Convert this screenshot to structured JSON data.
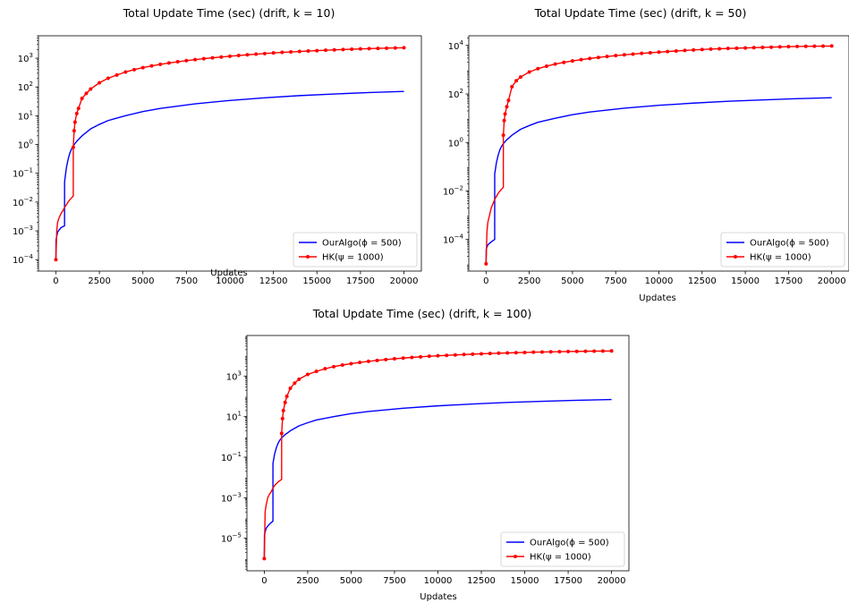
{
  "chart_data": [
    {
      "type": "line",
      "title": "Total Update Time (sec) (drift, k = 10)",
      "xlabel": "Updates",
      "ylabel": "",
      "yscale": "log",
      "xlim": [
        -1000,
        21000
      ],
      "ylim": [
        4e-05,
        6000
      ],
      "xticks": [
        0,
        2500,
        5000,
        7500,
        10000,
        12500,
        15000,
        17500,
        20000
      ],
      "yticks": [
        {
          "value": 0.0001,
          "mant": "10",
          "exp": "−4"
        },
        {
          "value": 0.001,
          "mant": "10",
          "exp": "−3"
        },
        {
          "value": 0.01,
          "mant": "10",
          "exp": "−2"
        },
        {
          "value": 0.1,
          "mant": "10",
          "exp": "−1"
        },
        {
          "value": 1,
          "mant": "10",
          "exp": "0"
        },
        {
          "value": 10,
          "mant": "10",
          "exp": "1"
        },
        {
          "value": 100,
          "mant": "10",
          "exp": "2"
        },
        {
          "value": 1000,
          "mant": "10",
          "exp": "3"
        }
      ],
      "legend": "lower-right",
      "series": [
        {
          "name": "OurAlgo(ϕ = 500)",
          "color": "#0000ff",
          "marker": "none",
          "x": [
            0,
            10,
            100,
            200,
            300,
            400,
            499,
            500,
            600,
            700,
            800,
            900,
            1000,
            1200,
            1500,
            2000,
            2500,
            3000,
            4000,
            5000,
            6000,
            8000,
            10000,
            12000,
            14000,
            16000,
            18000,
            20000
          ],
          "y": [
            0.0001,
            0.0005,
            0.0009,
            0.0011,
            0.0013,
            0.0014,
            0.0015,
            0.05,
            0.15,
            0.3,
            0.5,
            0.7,
            0.9,
            1.3,
            2.0,
            3.5,
            5.0,
            6.8,
            10,
            14,
            18,
            26,
            34,
            42,
            50,
            57,
            64,
            70
          ]
        },
        {
          "name": "HK(ψ = 1000)",
          "color": "#ff0000",
          "marker": "dot",
          "x": [
            0,
            50,
            100,
            200,
            300,
            400,
            500,
            600,
            700,
            800,
            900,
            999,
            1000,
            1050,
            1100,
            1200,
            1300,
            1500,
            1750,
            2000,
            2500,
            3000,
            3500,
            4000,
            4500,
            5000,
            5500,
            6000,
            6500,
            7000,
            7500,
            8000,
            8500,
            9000,
            9500,
            10000,
            10500,
            11000,
            11500,
            12000,
            12500,
            13000,
            13500,
            14000,
            14500,
            15000,
            15500,
            16000,
            16500,
            17000,
            17500,
            18000,
            18500,
            19000,
            19500,
            20000
          ],
          "y": [
            0.0001,
            0.001,
            0.002,
            0.003,
            0.004,
            0.005,
            0.0065,
            0.008,
            0.01,
            0.012,
            0.014,
            0.016,
            0.8,
            3,
            6,
            12,
            18,
            40,
            60,
            85,
            140,
            200,
            260,
            330,
            400,
            470,
            540,
            610,
            680,
            750,
            820,
            890,
            960,
            1030,
            1100,
            1170,
            1240,
            1310,
            1380,
            1450,
            1520,
            1590,
            1650,
            1710,
            1770,
            1830,
            1890,
            1950,
            2000,
            2050,
            2100,
            2150,
            2190,
            2230,
            2270,
            2300
          ]
        }
      ]
    },
    {
      "type": "line",
      "title": "Total Update Time (sec) (drift, k = 50)",
      "xlabel": "Updates",
      "ylabel": "",
      "yscale": "log",
      "xlim": [
        -1000,
        21000
      ],
      "ylim": [
        5e-06,
        25000
      ],
      "xticks": [
        0,
        2500,
        5000,
        7500,
        10000,
        12500,
        15000,
        17500,
        20000
      ],
      "yticks": [
        {
          "value": 0.0001,
          "mant": "10",
          "exp": "−4"
        },
        {
          "value": 0.01,
          "mant": "10",
          "exp": "−2"
        },
        {
          "value": 1,
          "mant": "10",
          "exp": "0"
        },
        {
          "value": 100,
          "mant": "10",
          "exp": "2"
        },
        {
          "value": 10000,
          "mant": "10",
          "exp": "4"
        }
      ],
      "legend": "lower-right",
      "series": [
        {
          "name": "OurAlgo(ϕ = 500)",
          "color": "#0000ff",
          "marker": "none",
          "x": [
            0,
            10,
            100,
            200,
            300,
            400,
            499,
            500,
            600,
            700,
            800,
            900,
            1000,
            1200,
            1500,
            2000,
            2500,
            3000,
            4000,
            5000,
            6000,
            8000,
            10000,
            12000,
            14000,
            16000,
            18000,
            20000
          ],
          "y": [
            1e-05,
            4e-05,
            6e-05,
            7e-05,
            8e-05,
            9e-05,
            0.0001,
            0.05,
            0.15,
            0.3,
            0.5,
            0.7,
            0.9,
            1.3,
            2.0,
            3.5,
            5.0,
            6.8,
            10,
            14,
            18,
            26,
            34,
            42,
            50,
            57,
            64,
            70
          ]
        },
        {
          "name": "HK(ψ = 1000)",
          "color": "#ff0000",
          "marker": "dot",
          "x": [
            0,
            50,
            100,
            200,
            300,
            400,
            500,
            600,
            700,
            800,
            900,
            999,
            1000,
            1050,
            1100,
            1200,
            1300,
            1500,
            1750,
            2000,
            2500,
            3000,
            3500,
            4000,
            4500,
            5000,
            5500,
            6000,
            6500,
            7000,
            7500,
            8000,
            8500,
            9000,
            9500,
            10000,
            10500,
            11000,
            11500,
            12000,
            12500,
            13000,
            13500,
            14000,
            14500,
            15000,
            15500,
            16000,
            16500,
            17000,
            17500,
            18000,
            18500,
            19000,
            19500,
            20000
          ],
          "y": [
            1e-05,
            0.0002,
            0.0005,
            0.001,
            0.002,
            0.003,
            0.0045,
            0.006,
            0.008,
            0.01,
            0.012,
            0.014,
            2,
            8,
            15,
            30,
            55,
            200,
            350,
            500,
            800,
            1100,
            1400,
            1700,
            2000,
            2300,
            2600,
            2900,
            3200,
            3500,
            3800,
            4100,
            4400,
            4700,
            5000,
            5300,
            5600,
            5900,
            6200,
            6500,
            6800,
            7100,
            7300,
            7500,
            7700,
            7900,
            8100,
            8300,
            8500,
            8700,
            8900,
            9100,
            9200,
            9300,
            9400,
            9500
          ]
        }
      ]
    },
    {
      "type": "line",
      "title": "Total Update Time (sec) (drift, k = 100)",
      "xlabel": "Updates",
      "ylabel": "",
      "yscale": "log",
      "xlim": [
        -1000,
        21000
      ],
      "ylim": [
        2.5e-07,
        100000
      ],
      "xticks": [
        0,
        2500,
        5000,
        7500,
        10000,
        12500,
        15000,
        17500,
        20000
      ],
      "yticks": [
        {
          "value": 1e-05,
          "mant": "10",
          "exp": "−5"
        },
        {
          "value": 0.001,
          "mant": "10",
          "exp": "−3"
        },
        {
          "value": 0.1,
          "mant": "10",
          "exp": "−1"
        },
        {
          "value": 10,
          "mant": "10",
          "exp": "1"
        },
        {
          "value": 1000,
          "mant": "10",
          "exp": "3"
        }
      ],
      "legend": "lower-right",
      "series": [
        {
          "name": "OurAlgo(ϕ = 500)",
          "color": "#0000ff",
          "marker": "none",
          "x": [
            0,
            10,
            100,
            200,
            300,
            400,
            499,
            500,
            600,
            700,
            800,
            900,
            1000,
            1200,
            1500,
            2000,
            2500,
            3000,
            4000,
            5000,
            6000,
            8000,
            10000,
            12000,
            14000,
            16000,
            18000,
            20000
          ],
          "y": [
            1e-06,
            1.5e-05,
            3e-05,
            4e-05,
            5e-05,
            6e-05,
            7e-05,
            0.05,
            0.15,
            0.3,
            0.5,
            0.7,
            0.9,
            1.3,
            2.0,
            3.5,
            5.0,
            6.8,
            10,
            14,
            18,
            26,
            34,
            42,
            50,
            57,
            64,
            70
          ]
        },
        {
          "name": "HK(ψ = 1000)",
          "color": "#ff0000",
          "marker": "dot",
          "x": [
            0,
            50,
            100,
            200,
            300,
            400,
            500,
            600,
            700,
            800,
            900,
            999,
            1000,
            1050,
            1100,
            1200,
            1300,
            1500,
            1750,
            2000,
            2500,
            3000,
            3500,
            4000,
            4500,
            5000,
            5500,
            6000,
            6500,
            7000,
            7500,
            8000,
            8500,
            9000,
            9500,
            10000,
            10500,
            11000,
            11500,
            12000,
            12500,
            13000,
            13500,
            14000,
            14500,
            15000,
            15500,
            16000,
            16500,
            17000,
            17500,
            18000,
            18500,
            19000,
            19500,
            20000
          ],
          "y": [
            1e-06,
            0.0002,
            0.0004,
            0.001,
            0.0015,
            0.002,
            0.003,
            0.004,
            0.005,
            0.006,
            0.007,
            0.008,
            1.5,
            8,
            20,
            50,
            100,
            250,
            450,
            700,
            1200,
            1700,
            2300,
            2900,
            3500,
            4100,
            4700,
            5300,
            5900,
            6500,
            7100,
            7700,
            8300,
            8900,
            9500,
            10000,
            10500,
            11000,
            11500,
            12000,
            12500,
            13000,
            13400,
            13800,
            14200,
            14600,
            15000,
            15300,
            15600,
            15900,
            16200,
            16500,
            16700,
            16900,
            17100,
            17300
          ]
        }
      ]
    }
  ]
}
